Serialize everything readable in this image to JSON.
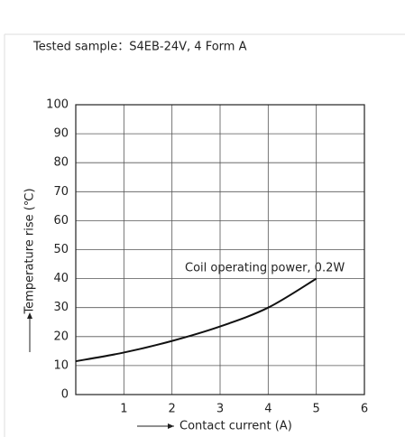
{
  "chart_data": {
    "type": "line",
    "title": "Tested sample：S4EB-24V, 4 Form A",
    "x_label": "Contact current (A)",
    "y_label": "Temperature rise (℃)",
    "annotation": "Coil operating power, 0.2W",
    "x": [
      0,
      1,
      2,
      3,
      4,
      5
    ],
    "series": [
      {
        "name": "Coil operating power, 0.2W",
        "color": "#111111",
        "values": [
          11.5,
          14.5,
          18.5,
          23.5,
          30,
          40
        ]
      }
    ],
    "xlim": [
      0,
      6
    ],
    "xticks": [
      1,
      2,
      3,
      4,
      5,
      6
    ],
    "ylim": [
      0,
      100
    ],
    "yticks": [
      0,
      10,
      20,
      30,
      40,
      50,
      60,
      70,
      80,
      90,
      100
    ],
    "grid": true
  }
}
